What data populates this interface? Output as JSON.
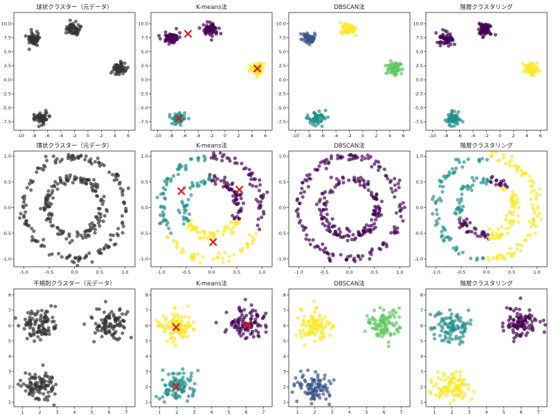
{
  "colors": {
    "raw": "#333333",
    "centroid": "#e8141a",
    "viridis": {
      "purple": "#440154",
      "blue": "#3b528b",
      "teal": "#21918c",
      "green": "#5ec962",
      "yellow": "#fde725"
    }
  },
  "chart_data": [
    {
      "type": "scatter",
      "title": "球状クラスター（元データ）",
      "dataset": "blobs",
      "coloring": "raw",
      "xlim": [
        -11,
        7
      ],
      "ylim": [
        -9,
        12
      ],
      "xticks": [
        -10,
        -8,
        -6,
        -4,
        -2,
        0,
        2,
        4,
        6
      ],
      "yticks": [
        -7.5,
        -5.0,
        -2.5,
        0.0,
        2.5,
        5.0,
        7.5,
        10.0
      ],
      "clusters": [
        {
          "center": [
            -8.0,
            7.3
          ],
          "spread": 0.55,
          "n": 60,
          "color": "raw"
        },
        {
          "center": [
            -2.2,
            9.0
          ],
          "spread": 0.55,
          "n": 60,
          "color": "raw"
        },
        {
          "center": [
            4.7,
            2.0
          ],
          "spread": 0.55,
          "n": 60,
          "color": "raw"
        },
        {
          "center": [
            -6.9,
            -6.9
          ],
          "spread": 0.55,
          "n": 60,
          "color": "raw"
        }
      ]
    },
    {
      "type": "scatter",
      "title": "K-means法",
      "dataset": "blobs",
      "xlim": [
        -11,
        7
      ],
      "ylim": [
        -9,
        12
      ],
      "xticks": [
        -10,
        -8,
        -6,
        -4,
        -2,
        0,
        2,
        4,
        6
      ],
      "yticks": [
        -7.5,
        -5.0,
        -2.5,
        0.0,
        2.5,
        5.0,
        7.5,
        10.0
      ],
      "clusters": [
        {
          "center": [
            -8.0,
            7.3
          ],
          "spread": 0.55,
          "n": 60,
          "color": "purple"
        },
        {
          "center": [
            -2.2,
            9.0
          ],
          "spread": 0.55,
          "n": 60,
          "color": "purple"
        },
        {
          "center": [
            4.7,
            2.0
          ],
          "spread": 0.55,
          "n": 60,
          "color": "yellow"
        },
        {
          "center": [
            -6.9,
            -6.9
          ],
          "spread": 0.55,
          "n": 60,
          "color": "teal"
        }
      ],
      "centroids": [
        [
          -5.5,
          8.2
        ],
        [
          4.8,
          2.0
        ],
        [
          -6.9,
          -6.9
        ]
      ]
    },
    {
      "type": "scatter",
      "title": "DBSCAN法",
      "dataset": "blobs",
      "xlim": [
        -11,
        7
      ],
      "ylim": [
        -9,
        12
      ],
      "xticks": [
        -10,
        -8,
        -6,
        -4,
        -2,
        0,
        2,
        4,
        6
      ],
      "yticks": [
        -7.5,
        -5.0,
        -2.5,
        0.0,
        2.5,
        5.0,
        7.5,
        10.0
      ],
      "clusters": [
        {
          "center": [
            -8.0,
            7.3
          ],
          "spread": 0.55,
          "n": 60,
          "color": "blue"
        },
        {
          "center": [
            -2.2,
            9.0
          ],
          "spread": 0.55,
          "n": 60,
          "color": "yellow"
        },
        {
          "center": [
            4.7,
            2.0
          ],
          "spread": 0.55,
          "n": 60,
          "color": "green"
        },
        {
          "center": [
            -6.9,
            -6.9
          ],
          "spread": 0.55,
          "n": 60,
          "color": "teal"
        }
      ]
    },
    {
      "type": "scatter",
      "title": "階層クラスタリング",
      "dataset": "blobs",
      "xlim": [
        -11,
        7
      ],
      "ylim": [
        -9,
        12
      ],
      "xticks": [
        -10,
        -8,
        -6,
        -4,
        -2,
        0,
        2,
        4,
        6
      ],
      "yticks": [
        -7.5,
        -5.0,
        -2.5,
        0.0,
        2.5,
        5.0,
        7.5,
        10.0
      ],
      "clusters": [
        {
          "center": [
            -8.0,
            7.3
          ],
          "spread": 0.55,
          "n": 60,
          "color": "purple"
        },
        {
          "center": [
            -2.2,
            9.0
          ],
          "spread": 0.55,
          "n": 60,
          "color": "purple"
        },
        {
          "center": [
            4.7,
            2.0
          ],
          "spread": 0.55,
          "n": 60,
          "color": "yellow"
        },
        {
          "center": [
            -6.9,
            -6.9
          ],
          "spread": 0.55,
          "n": 60,
          "color": "teal"
        }
      ]
    },
    {
      "type": "scatter",
      "title": "環状クラスター（元データ）",
      "dataset": "circles",
      "coloring": "raw",
      "xlim": [
        -1.2,
        1.2
      ],
      "ylim": [
        -1.15,
        1.1
      ],
      "xticks": [
        -1.0,
        -0.5,
        0.0,
        0.5,
        1.0
      ],
      "yticks": [
        -1.0,
        -0.5,
        0.0,
        0.5,
        1.0
      ],
      "rings": [
        {
          "radius": 1.0,
          "noise": 0.05,
          "n": 150,
          "label": 0
        },
        {
          "radius": 0.55,
          "noise": 0.05,
          "n": 150,
          "label": 1
        }
      ],
      "label_colors": [
        "raw",
        "raw"
      ]
    },
    {
      "type": "scatter",
      "title": "K-means法",
      "dataset": "circles",
      "xlim": [
        -1.2,
        1.2
      ],
      "ylim": [
        -1.15,
        1.1
      ],
      "xticks": [
        -1.0,
        -0.5,
        0.0,
        0.5,
        1.0
      ],
      "yticks": [
        -1.0,
        -0.5,
        0.0,
        0.5,
        1.0
      ],
      "rings": [
        {
          "radius": 1.0,
          "noise": 0.05,
          "n": 150
        },
        {
          "radius": 0.55,
          "noise": 0.05,
          "n": 150
        }
      ],
      "partition": "kmeans",
      "centroids": [
        [
          -0.6,
          0.32
        ],
        [
          0.55,
          0.35
        ],
        [
          0.03,
          -0.67
        ]
      ],
      "centroid_colors": [
        "teal",
        "purple",
        "yellow"
      ]
    },
    {
      "type": "scatter",
      "title": "DBSCAN法",
      "dataset": "circles",
      "xlim": [
        -1.2,
        1.2
      ],
      "ylim": [
        -1.15,
        1.1
      ],
      "xticks": [
        -1.0,
        -0.5,
        0.0,
        0.5,
        1.0
      ],
      "yticks": [
        -1.0,
        -0.5,
        0.0,
        0.5,
        1.0
      ],
      "rings": [
        {
          "radius": 1.0,
          "noise": 0.05,
          "n": 150
        },
        {
          "radius": 0.55,
          "noise": 0.05,
          "n": 150
        }
      ],
      "label_colors": [
        "purple",
        "purple"
      ]
    },
    {
      "type": "scatter",
      "title": "階層クラスタリング",
      "dataset": "circles",
      "xlim": [
        -1.2,
        1.2
      ],
      "ylim": [
        -1.15,
        1.1
      ],
      "xticks": [
        -1.0,
        -0.5,
        0.0,
        0.5,
        1.0
      ],
      "yticks": [
        -1.0,
        -0.5,
        0.0,
        0.5,
        1.0
      ],
      "rings": [
        {
          "radius": 1.0,
          "noise": 0.05,
          "n": 150
        },
        {
          "radius": 0.55,
          "noise": 0.05,
          "n": 150
        }
      ],
      "partition": "hierarchical"
    },
    {
      "type": "scatter",
      "title": "不規則クラスター（元データ）",
      "dataset": "irregular",
      "coloring": "raw",
      "xlim": [
        0.5,
        7.5
      ],
      "ylim": [
        0.7,
        8.4
      ],
      "xticks": [
        1,
        2,
        3,
        4,
        5,
        6,
        7
      ],
      "yticks": [
        1,
        2,
        3,
        4,
        5,
        6,
        7,
        8
      ],
      "clusters": [
        {
          "center": [
            2.0,
            6.0
          ],
          "spread": 0.5,
          "n": 100,
          "color": "raw"
        },
        {
          "center": [
            6.1,
            6.1
          ],
          "spread": 0.5,
          "n": 100,
          "color": "raw"
        },
        {
          "center": [
            2.0,
            2.0
          ],
          "spread": 0.5,
          "n": 100,
          "color": "raw"
        }
      ]
    },
    {
      "type": "scatter",
      "title": "K-means法",
      "dataset": "irregular",
      "xlim": [
        0.5,
        7.5
      ],
      "ylim": [
        0.7,
        8.4
      ],
      "xticks": [
        1,
        2,
        3,
        4,
        5,
        6,
        7
      ],
      "yticks": [
        1,
        2,
        3,
        4,
        5,
        6,
        7,
        8
      ],
      "clusters": [
        {
          "center": [
            2.0,
            6.0
          ],
          "spread": 0.5,
          "n": 100,
          "color": "yellow"
        },
        {
          "center": [
            6.1,
            6.1
          ],
          "spread": 0.5,
          "n": 100,
          "color": "purple"
        },
        {
          "center": [
            2.0,
            2.0
          ],
          "spread": 0.5,
          "n": 100,
          "color": "teal"
        }
      ],
      "centroids": [
        [
          1.95,
          5.9
        ],
        [
          6.05,
          6.05
        ],
        [
          1.95,
          2.0
        ]
      ]
    },
    {
      "type": "scatter",
      "title": "DBSCAN法",
      "dataset": "irregular",
      "xlim": [
        0.5,
        7.5
      ],
      "ylim": [
        0.7,
        8.4
      ],
      "xticks": [
        1,
        2,
        3,
        4,
        5,
        6,
        7
      ],
      "yticks": [
        1,
        2,
        3,
        4,
        5,
        6,
        7,
        8
      ],
      "clusters": [
        {
          "center": [
            2.0,
            6.0
          ],
          "spread": 0.5,
          "n": 100,
          "color": "yellow"
        },
        {
          "center": [
            6.1,
            6.1
          ],
          "spread": 0.5,
          "n": 100,
          "color": "green"
        },
        {
          "center": [
            2.0,
            2.0
          ],
          "spread": 0.5,
          "n": 100,
          "color": "blue"
        }
      ]
    },
    {
      "type": "scatter",
      "title": "階層クラスタリング",
      "dataset": "irregular",
      "xlim": [
        0.5,
        7.5
      ],
      "ylim": [
        0.7,
        8.4
      ],
      "xticks": [
        1,
        2,
        3,
        4,
        5,
        6,
        7
      ],
      "yticks": [
        1,
        2,
        3,
        4,
        5,
        6,
        7,
        8
      ],
      "clusters": [
        {
          "center": [
            2.0,
            6.0
          ],
          "spread": 0.5,
          "n": 100,
          "color": "teal"
        },
        {
          "center": [
            6.1,
            6.1
          ],
          "spread": 0.5,
          "n": 100,
          "color": "purple"
        },
        {
          "center": [
            2.0,
            2.0
          ],
          "spread": 0.5,
          "n": 100,
          "color": "yellow"
        }
      ]
    }
  ]
}
